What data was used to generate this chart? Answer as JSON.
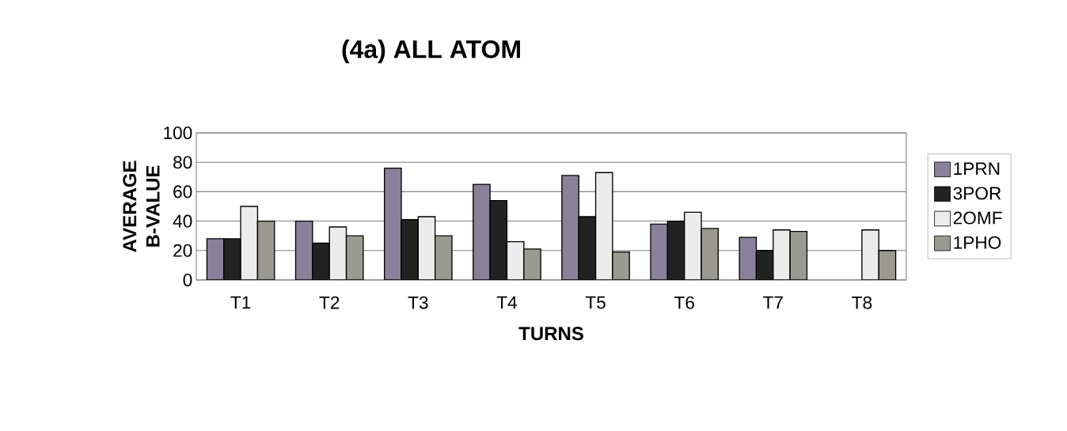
{
  "chart_data": {
    "type": "bar",
    "title": "(4a) ALL ATOM",
    "xlabel": "TURNS",
    "ylabel": "AVERAGE B-VALUE",
    "categories": [
      "T1",
      "T2",
      "T3",
      "T4",
      "T5",
      "T6",
      "T7",
      "T8"
    ],
    "series": [
      {
        "name": "1PRN",
        "color": "#8a809a",
        "values": [
          28,
          40,
          76,
          65,
          71,
          38,
          29,
          null
        ]
      },
      {
        "name": "3POR",
        "color": "#222222",
        "values": [
          28,
          25,
          41,
          54,
          43,
          40,
          20,
          null
        ]
      },
      {
        "name": "2OMF",
        "color": "#ececec",
        "values": [
          50,
          36,
          43,
          26,
          73,
          46,
          34,
          34
        ]
      },
      {
        "name": "1PHO",
        "color": "#9a9a90",
        "values": [
          40,
          30,
          30,
          21,
          19,
          35,
          33,
          20
        ]
      }
    ],
    "ylim": [
      0,
      100
    ],
    "yticks": [
      0,
      20,
      40,
      60,
      80,
      100
    ],
    "grid": "y",
    "legend": "right"
  }
}
